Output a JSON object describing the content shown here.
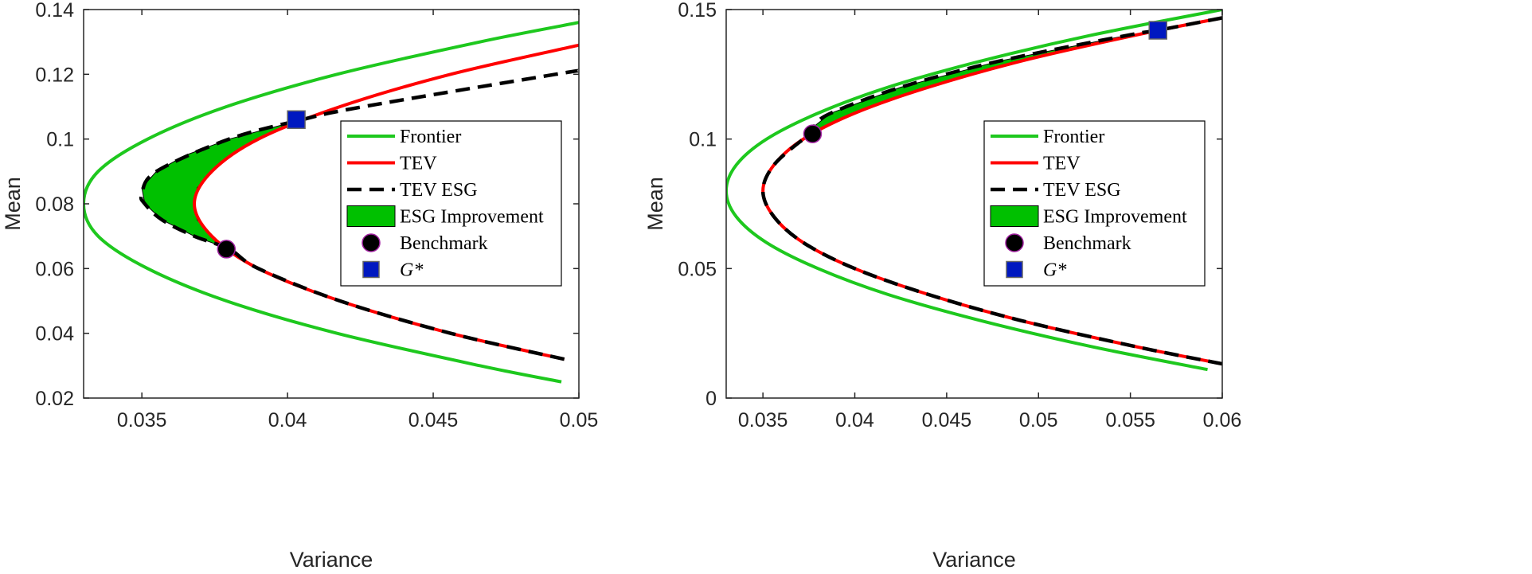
{
  "chart_data": [
    {
      "type": "line",
      "xlabel": "Variance",
      "ylabel": "Mean",
      "xlim": [
        0.033,
        0.05
      ],
      "ylim": [
        0.02,
        0.14
      ],
      "xticks": [
        0.035,
        0.04,
        0.045,
        0.05
      ],
      "yticks": [
        0.02,
        0.04,
        0.06,
        0.08,
        0.1,
        0.12,
        0.14
      ],
      "legend_loc": "east",
      "series": [
        {
          "name": "Frontier",
          "kind": "line",
          "color": "#1ec81e",
          "dash": false,
          "x": [
            0.0494,
            0.0466,
            0.0417,
            0.0379,
            0.0352,
            0.0335,
            0.033,
            0.0335,
            0.0352,
            0.0379,
            0.0417,
            0.0466,
            0.05
          ],
          "y": [
            0.025,
            0.03,
            0.04,
            0.05,
            0.06,
            0.07,
            0.08,
            0.09,
            0.1,
            0.11,
            0.12,
            0.13,
            0.136
          ]
        },
        {
          "name": "TEV",
          "kind": "line",
          "color": "#ff0000",
          "dash": false,
          "x": [
            0.0495,
            0.0456,
            0.0418,
            0.039,
            0.0374,
            0.0368,
            0.0374,
            0.039,
            0.0418,
            0.0456,
            0.05
          ],
          "y": [
            0.032,
            0.04,
            0.05,
            0.06,
            0.07,
            0.08,
            0.09,
            0.1,
            0.11,
            0.12,
            0.129
          ]
        },
        {
          "name": "TEV ESG",
          "kind": "line",
          "color": "#000000",
          "dash": true,
          "x": [
            0.0495,
            0.0456,
            0.0418,
            0.039,
            0.038,
            0.0368,
            0.0357,
            0.0351,
            0.035,
            0.0355,
            0.038,
            0.0405,
            0.0426,
            0.0492,
            0.05
          ],
          "y": [
            0.032,
            0.04,
            0.05,
            0.06,
            0.066,
            0.07,
            0.075,
            0.08,
            0.083,
            0.09,
            0.1,
            0.106,
            0.11,
            0.12,
            0.121
          ]
        },
        {
          "name": "ESG Improvement",
          "kind": "area",
          "color": "#00c000",
          "x": [
            0.038,
            0.0368,
            0.0357,
            0.0351,
            0.035,
            0.0355,
            0.0365,
            0.038,
            0.0405
          ],
          "x2": [
            0.0379,
            0.0374,
            0.0369,
            0.0368,
            0.0369,
            0.0374,
            0.038,
            0.039,
            0.0405
          ],
          "y": [
            0.066,
            0.07,
            0.075,
            0.08,
            0.085,
            0.09,
            0.095,
            0.1,
            0.106
          ]
        },
        {
          "name": "Benchmark",
          "kind": "circle",
          "color": "#000000",
          "x": [
            0.0379
          ],
          "y": [
            0.066
          ]
        },
        {
          "name": "G*",
          "kind": "square",
          "color": "#0018c0",
          "x": [
            0.0403
          ],
          "y": [
            0.106
          ]
        }
      ]
    },
    {
      "type": "line",
      "xlabel": "Variance",
      "ylabel": "Mean",
      "xlim": [
        0.033,
        0.06
      ],
      "ylim": [
        0,
        0.15
      ],
      "xticks": [
        0.035,
        0.04,
        0.045,
        0.05,
        0.055,
        0.06
      ],
      "yticks": [
        0,
        0.05,
        0.1,
        0.15
      ],
      "legend_loc": "east",
      "series": [
        {
          "name": "Frontier",
          "kind": "line",
          "color": "#1ec81e",
          "dash": false,
          "x": [
            0.0592,
            0.0528,
            0.0468,
            0.0418,
            0.038,
            0.0352,
            0.03355,
            0.033,
            0.03355,
            0.0352,
            0.038,
            0.0418,
            0.0468,
            0.0528,
            0.06
          ],
          "y": [
            0.011,
            0.02,
            0.03,
            0.04,
            0.05,
            0.06,
            0.07,
            0.08,
            0.09,
            0.1,
            0.11,
            0.12,
            0.13,
            0.14,
            0.15
          ]
        },
        {
          "name": "TEV",
          "kind": "line",
          "color": "#ff0000",
          "dash": false,
          "x": [
            0.06,
            0.0552,
            0.049,
            0.044,
            0.04,
            0.0372,
            0.0356,
            0.035,
            0.0356,
            0.0372,
            0.04,
            0.044,
            0.049,
            0.0552,
            0.06
          ],
          "y": [
            0.0132,
            0.02,
            0.03,
            0.04,
            0.05,
            0.06,
            0.07,
            0.08,
            0.09,
            0.1,
            0.11,
            0.12,
            0.13,
            0.14,
            0.1468
          ]
        },
        {
          "name": "TEV ESG",
          "kind": "line",
          "color": "#000000",
          "dash": true,
          "x": [
            0.06,
            0.0552,
            0.049,
            0.044,
            0.04,
            0.0372,
            0.0356,
            0.035,
            0.0356,
            0.0372,
            0.0377,
            0.0378,
            0.0387,
            0.0425,
            0.0478,
            0.0548,
            0.0565,
            0.06
          ],
          "y": [
            0.0132,
            0.02,
            0.03,
            0.04,
            0.05,
            0.06,
            0.07,
            0.08,
            0.09,
            0.1,
            0.102,
            0.105,
            0.11,
            0.12,
            0.13,
            0.14,
            0.142,
            0.1468
          ]
        },
        {
          "name": "ESG Improvement",
          "kind": "area",
          "color": "#00c000",
          "x": [
            0.0377,
            0.0378,
            0.0387,
            0.0425,
            0.0478,
            0.0548,
            0.0565
          ],
          "x2": [
            0.0377,
            0.0385,
            0.04,
            0.044,
            0.049,
            0.0552,
            0.0565
          ],
          "y": [
            0.102,
            0.105,
            0.11,
            0.12,
            0.13,
            0.14,
            0.142
          ]
        },
        {
          "name": "Benchmark",
          "kind": "circle",
          "color": "#000000",
          "x": [
            0.0377
          ],
          "y": [
            0.102
          ]
        },
        {
          "name": "G*",
          "kind": "square",
          "color": "#0018c0",
          "x": [
            0.0565
          ],
          "y": [
            0.142
          ]
        }
      ]
    }
  ]
}
